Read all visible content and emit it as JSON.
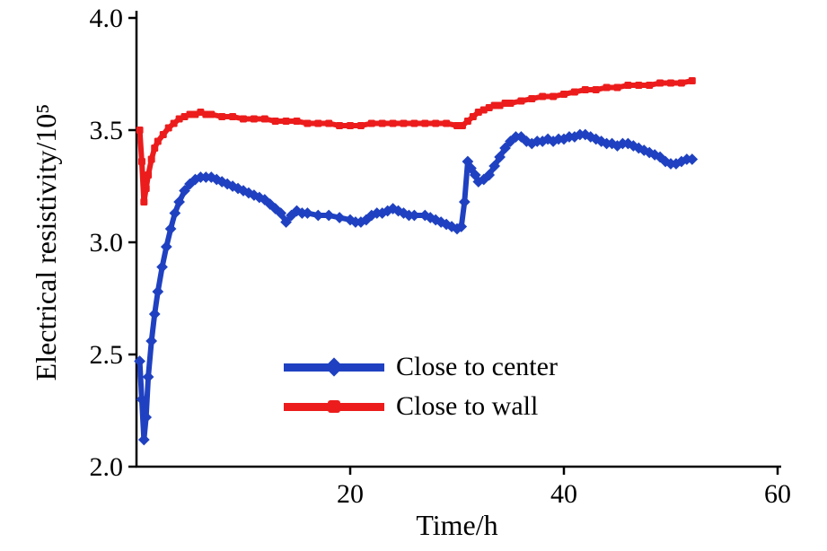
{
  "chart_data": {
    "type": "line",
    "title": "",
    "xlabel": "Time/h",
    "ylabel": "Electrical resistivity/10⁵",
    "xlim": [
      0,
      60
    ],
    "ylim": [
      2.0,
      4.0
    ],
    "grid": false,
    "legend_position": "inside lower-center",
    "axis_color": "#000000",
    "xticks": [
      {
        "v": 20,
        "label": "20"
      },
      {
        "v": 40,
        "label": "40"
      },
      {
        "v": 60,
        "label": "60"
      }
    ],
    "yticks": [
      {
        "v": 2.0,
        "label": "2.0"
      },
      {
        "v": 2.5,
        "label": "2.5"
      },
      {
        "v": 3.0,
        "label": "3.0"
      },
      {
        "v": 3.5,
        "label": "3.5"
      },
      {
        "v": 4.0,
        "label": "4.0"
      }
    ],
    "series": [
      {
        "name": "Close to center",
        "color": "#1f41c1",
        "marker": "diamond",
        "points": [
          [
            0.3,
            2.47
          ],
          [
            0.5,
            2.3
          ],
          [
            0.7,
            2.12
          ],
          [
            0.9,
            2.22
          ],
          [
            1.1,
            2.4
          ],
          [
            1.4,
            2.56
          ],
          [
            1.7,
            2.68
          ],
          [
            2,
            2.78
          ],
          [
            2.4,
            2.89
          ],
          [
            2.8,
            2.98
          ],
          [
            3.2,
            3.06
          ],
          [
            3.6,
            3.13
          ],
          [
            4,
            3.18
          ],
          [
            4.5,
            3.23
          ],
          [
            5,
            3.26
          ],
          [
            5.5,
            3.28
          ],
          [
            6,
            3.29
          ],
          [
            6.5,
            3.29
          ],
          [
            7,
            3.29
          ],
          [
            7.5,
            3.28
          ],
          [
            8,
            3.27
          ],
          [
            8.5,
            3.26
          ],
          [
            9,
            3.25
          ],
          [
            9.5,
            3.24
          ],
          [
            10,
            3.23
          ],
          [
            10.5,
            3.22
          ],
          [
            11,
            3.21
          ],
          [
            11.5,
            3.2
          ],
          [
            12,
            3.19
          ],
          [
            12.5,
            3.17
          ],
          [
            13,
            3.15
          ],
          [
            13.5,
            3.13
          ],
          [
            14,
            3.09
          ],
          [
            14.5,
            3.12
          ],
          [
            15,
            3.14
          ],
          [
            15.5,
            3.13
          ],
          [
            16,
            3.13
          ],
          [
            17,
            3.12
          ],
          [
            18,
            3.12
          ],
          [
            19,
            3.11
          ],
          [
            20,
            3.1
          ],
          [
            20.5,
            3.09
          ],
          [
            21,
            3.09
          ],
          [
            21.5,
            3.1
          ],
          [
            22,
            3.12
          ],
          [
            22.5,
            3.13
          ],
          [
            23,
            3.13
          ],
          [
            23.5,
            3.14
          ],
          [
            24,
            3.15
          ],
          [
            24.5,
            3.14
          ],
          [
            25,
            3.13
          ],
          [
            25.5,
            3.12
          ],
          [
            26,
            3.12
          ],
          [
            27,
            3.12
          ],
          [
            27.5,
            3.11
          ],
          [
            28,
            3.1
          ],
          [
            28.5,
            3.09
          ],
          [
            29,
            3.08
          ],
          [
            29.5,
            3.07
          ],
          [
            30,
            3.06
          ],
          [
            30.4,
            3.07
          ],
          [
            30.7,
            3.18
          ],
          [
            31,
            3.36
          ],
          [
            31.3,
            3.33
          ],
          [
            31.7,
            3.3
          ],
          [
            32,
            3.27
          ],
          [
            32.5,
            3.28
          ],
          [
            33,
            3.3
          ],
          [
            33.5,
            3.34
          ],
          [
            34,
            3.38
          ],
          [
            34.5,
            3.42
          ],
          [
            35,
            3.45
          ],
          [
            35.5,
            3.47
          ],
          [
            36,
            3.47
          ],
          [
            36.5,
            3.45
          ],
          [
            37,
            3.44
          ],
          [
            37.5,
            3.45
          ],
          [
            38,
            3.45
          ],
          [
            38.5,
            3.46
          ],
          [
            39,
            3.45
          ],
          [
            39.5,
            3.46
          ],
          [
            40,
            3.46
          ],
          [
            40.5,
            3.47
          ],
          [
            41,
            3.47
          ],
          [
            41.5,
            3.48
          ],
          [
            42,
            3.48
          ],
          [
            42.5,
            3.47
          ],
          [
            43,
            3.46
          ],
          [
            43.5,
            3.45
          ],
          [
            44,
            3.44
          ],
          [
            44.5,
            3.44
          ],
          [
            45,
            3.43
          ],
          [
            45.5,
            3.44
          ],
          [
            46,
            3.44
          ],
          [
            46.5,
            3.43
          ],
          [
            47,
            3.42
          ],
          [
            47.5,
            3.41
          ],
          [
            48,
            3.4
          ],
          [
            48.5,
            3.39
          ],
          [
            49,
            3.38
          ],
          [
            49.5,
            3.36
          ],
          [
            50,
            3.35
          ],
          [
            50.5,
            3.35
          ],
          [
            51,
            3.36
          ],
          [
            51.5,
            3.37
          ],
          [
            52,
            3.37
          ]
        ]
      },
      {
        "name": "Close to wall",
        "color": "#ec1c1c",
        "marker": "square",
        "points": [
          [
            0.3,
            3.5
          ],
          [
            0.5,
            3.36
          ],
          [
            0.7,
            3.18
          ],
          [
            0.9,
            3.24
          ],
          [
            1.1,
            3.3
          ],
          [
            1.4,
            3.37
          ],
          [
            1.7,
            3.42
          ],
          [
            2,
            3.45
          ],
          [
            2.5,
            3.48
          ],
          [
            3,
            3.51
          ],
          [
            3.5,
            3.53
          ],
          [
            4,
            3.55
          ],
          [
            4.5,
            3.56
          ],
          [
            5,
            3.57
          ],
          [
            5.5,
            3.57
          ],
          [
            6,
            3.58
          ],
          [
            6.5,
            3.57
          ],
          [
            7,
            3.57
          ],
          [
            8,
            3.56
          ],
          [
            9,
            3.56
          ],
          [
            10,
            3.55
          ],
          [
            11,
            3.55
          ],
          [
            12,
            3.55
          ],
          [
            13,
            3.54
          ],
          [
            14,
            3.54
          ],
          [
            15,
            3.54
          ],
          [
            16,
            3.53
          ],
          [
            17,
            3.53
          ],
          [
            18,
            3.53
          ],
          [
            19,
            3.52
          ],
          [
            20,
            3.52
          ],
          [
            21,
            3.52
          ],
          [
            22,
            3.53
          ],
          [
            23,
            3.53
          ],
          [
            24,
            3.53
          ],
          [
            25,
            3.53
          ],
          [
            26,
            3.53
          ],
          [
            27,
            3.53
          ],
          [
            28,
            3.53
          ],
          [
            29,
            3.53
          ],
          [
            30,
            3.52
          ],
          [
            30.5,
            3.52
          ],
          [
            31,
            3.54
          ],
          [
            31.5,
            3.56
          ],
          [
            32,
            3.58
          ],
          [
            32.5,
            3.59
          ],
          [
            33,
            3.6
          ],
          [
            33.5,
            3.61
          ],
          [
            34,
            3.61
          ],
          [
            34.5,
            3.62
          ],
          [
            35,
            3.62
          ],
          [
            36,
            3.63
          ],
          [
            37,
            3.64
          ],
          [
            38,
            3.65
          ],
          [
            39,
            3.65
          ],
          [
            40,
            3.66
          ],
          [
            41,
            3.67
          ],
          [
            42,
            3.68
          ],
          [
            43,
            3.68
          ],
          [
            44,
            3.69
          ],
          [
            45,
            3.69
          ],
          [
            46,
            3.7
          ],
          [
            47,
            3.7
          ],
          [
            48,
            3.7
          ],
          [
            49,
            3.71
          ],
          [
            50,
            3.71
          ],
          [
            51,
            3.71
          ],
          [
            52,
            3.72
          ]
        ]
      }
    ]
  }
}
